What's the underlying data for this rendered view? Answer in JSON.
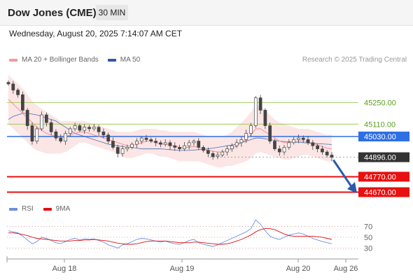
{
  "header": {
    "title": "Dow Jones (CME)",
    "interval": "30 MIN"
  },
  "datetime": "Wednesday, August 20, 2025 7:14:07 AM CET",
  "credit": "Research © 2025 Trading Central",
  "legend_price": [
    {
      "label": "MA 20 + Bollinger Bands",
      "color": "#f29a9a"
    },
    {
      "label": "MA 50",
      "color": "#2b5aa8"
    }
  ],
  "legend_rsi": [
    {
      "label": "RSI",
      "color": "#6a8fe0"
    },
    {
      "label": "9MA",
      "color": "#e01010"
    }
  ],
  "colors": {
    "resistance": "#8cc63f",
    "pivot": "#2f6fe4",
    "support": "#e81010",
    "last": "#333333",
    "arrow": "#2b5aa8"
  },
  "chart_data": [
    {
      "type": "line",
      "panel": "price",
      "ylim": [
        44600,
        45460
      ],
      "x_ticks": [
        "Aug 18",
        "Aug 19",
        "Aug 20",
        "Aug 26"
      ],
      "levels": [
        {
          "value": 45250,
          "label": "45250.00",
          "kind": "resistance"
        },
        {
          "value": 45110,
          "label": "45110.00",
          "kind": "resistance"
        },
        {
          "value": 45030,
          "label": "45030.00",
          "kind": "pivot"
        },
        {
          "value": 44896,
          "label": "44896.00",
          "kind": "last"
        },
        {
          "value": 44770,
          "label": "44770.00",
          "kind": "support"
        },
        {
          "value": 44670,
          "label": "44670.00",
          "kind": "support"
        }
      ],
      "price": [
        45370,
        45330,
        45300,
        45200,
        45100,
        45000,
        45080,
        45170,
        45120,
        45060,
        45020,
        45000,
        45050,
        45080,
        45100,
        45070,
        45090,
        45080,
        45090,
        45060,
        45040,
        45000,
        44960,
        44920,
        44950,
        44960,
        44980,
        45000,
        45020,
        45010,
        45000,
        44990,
        44980,
        44990,
        44970,
        44960,
        44950,
        44970,
        44990,
        45000,
        44960,
        44940,
        44920,
        44900,
        44910,
        44930,
        44950,
        44970,
        44990,
        45010,
        45050,
        45100,
        45280,
        45200,
        45100,
        45000,
        44950,
        44930,
        44960,
        44990,
        45010,
        45020,
        45010,
        44990,
        44970,
        44950,
        44930,
        44910,
        44896
      ],
      "ma20": [
        45270,
        45240,
        45210,
        45180,
        45150,
        45120,
        45090,
        45070,
        45050,
        45040,
        45030,
        45020,
        45030,
        45040,
        45050,
        45060,
        45060,
        45050,
        45040,
        45030,
        45020,
        45010,
        45000,
        44990,
        44980,
        44970,
        44970,
        44980,
        44990,
        45000,
        45000,
        44990,
        44980,
        44980,
        44975,
        44970,
        44960,
        44960,
        44960,
        44965,
        44960,
        44950,
        44940,
        44935,
        44930,
        44930,
        44940,
        44950,
        44970,
        44990,
        45010,
        45040,
        45080,
        45080,
        45060,
        45040,
        45020,
        45000,
        44990,
        44990,
        44995,
        45000,
        45000,
        44995,
        44985,
        44975,
        44965,
        44955,
        44950
      ],
      "bb_upper": [
        45430,
        45400,
        45370,
        45340,
        45300,
        45260,
        45230,
        45210,
        45190,
        45170,
        45150,
        45130,
        45130,
        45130,
        45130,
        45130,
        45130,
        45120,
        45110,
        45100,
        45090,
        45080,
        45070,
        45060,
        45060,
        45060,
        45060,
        45070,
        45080,
        45080,
        45080,
        45080,
        45070,
        45070,
        45060,
        45060,
        45060,
        45060,
        45060,
        45060,
        45050,
        45040,
        45030,
        45030,
        45030,
        45030,
        45040,
        45060,
        45090,
        45120,
        45150,
        45190,
        45230,
        45230,
        45200,
        45170,
        45140,
        45120,
        45110,
        45100,
        45090,
        45080,
        45080,
        45080,
        45070,
        45060,
        45050,
        45040,
        45040
      ],
      "bb_lower": [
        45110,
        45080,
        45050,
        45020,
        44990,
        44960,
        44940,
        44930,
        44920,
        44920,
        44920,
        44920,
        44930,
        44950,
        44970,
        44990,
        44990,
        44980,
        44970,
        44960,
        44950,
        44940,
        44930,
        44920,
        44900,
        44890,
        44890,
        44900,
        44910,
        44920,
        44920,
        44910,
        44900,
        44900,
        44890,
        44880,
        44870,
        44870,
        44870,
        44870,
        44870,
        44860,
        44850,
        44840,
        44830,
        44830,
        44840,
        44840,
        44850,
        44860,
        44870,
        44890,
        44920,
        44930,
        44920,
        44910,
        44900,
        44890,
        44880,
        44880,
        44890,
        44900,
        44910,
        44910,
        44900,
        44890,
        44880,
        44870,
        44870
      ],
      "ma50": [
        45140,
        45160,
        45170,
        45180,
        45180,
        45175,
        45170,
        45160,
        45150,
        45140,
        45130,
        45110,
        45090,
        45070,
        45050,
        45040,
        45030,
        45020,
        45010,
        45000,
        44990,
        44980,
        44975,
        44970,
        44965,
        44960,
        44960,
        44955,
        44950,
        44950,
        44950,
        44950,
        44950,
        44948,
        44945,
        44942,
        44940,
        44940,
        44940,
        44942,
        44945,
        44948,
        44950,
        44955,
        44960,
        44965,
        44970,
        44975,
        44980,
        44990,
        45000,
        45010,
        45020,
        45020,
        45015,
        45010,
        45005,
        45000,
        44998,
        44996,
        44994,
        44992,
        44990,
        44988,
        44986,
        44984,
        44982,
        44980,
        44978
      ]
    },
    {
      "type": "line",
      "panel": "rsi",
      "ylim": [
        15,
        90
      ],
      "y_ticks": [
        70,
        50,
        30
      ],
      "rsi": [
        62,
        60,
        58,
        52,
        45,
        38,
        42,
        50,
        48,
        44,
        40,
        38,
        42,
        46,
        48,
        45,
        47,
        46,
        47,
        44,
        41,
        36,
        33,
        30,
        36,
        38,
        42,
        46,
        48,
        47,
        45,
        43,
        41,
        43,
        40,
        38,
        37,
        40,
        44,
        46,
        40,
        37,
        35,
        33,
        36,
        40,
        44,
        48,
        52,
        56,
        60,
        66,
        82,
        74,
        62,
        52,
        48,
        46,
        50,
        54,
        56,
        58,
        56,
        52,
        48,
        45,
        42,
        40,
        38
      ],
      "ma9": [
        58,
        58,
        57,
        55,
        53,
        50,
        48,
        47,
        46,
        45,
        44,
        43,
        43,
        43,
        44,
        44,
        45,
        45,
        46,
        45,
        44,
        43,
        41,
        39,
        38,
        37,
        37,
        38,
        40,
        42,
        43,
        43,
        43,
        43,
        42,
        41,
        40,
        40,
        40,
        41,
        41,
        40,
        39,
        38,
        37,
        37,
        38,
        40,
        43,
        46,
        50,
        54,
        60,
        64,
        66,
        66,
        64,
        60,
        56,
        53,
        52,
        52,
        52,
        52,
        52,
        51,
        50,
        48,
        46
      ]
    }
  ]
}
